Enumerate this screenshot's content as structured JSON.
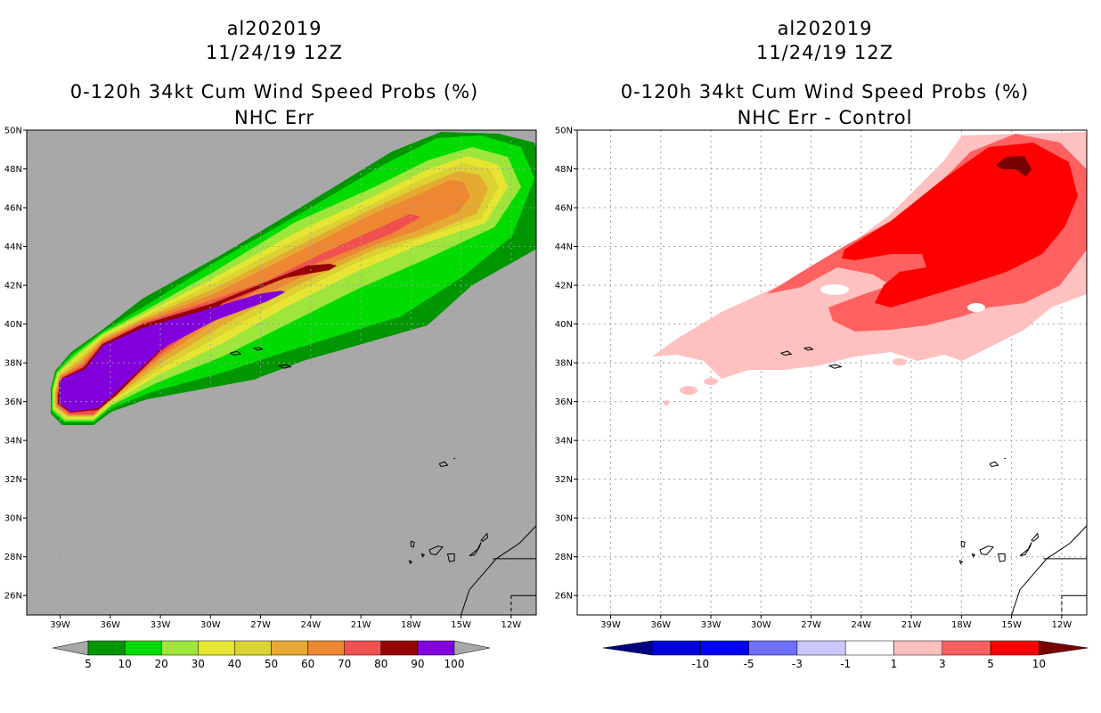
{
  "left_panel": {
    "storm_id": "al202019",
    "datetime": "11/24/19 12Z",
    "product": "0-120h 34kt Cum Wind Speed Probs (%)",
    "subtitle": "NHC Err",
    "background_color": "#a8a8a8",
    "colorbar_labels": [
      "5",
      "10",
      "20",
      "30",
      "40",
      "50",
      "60",
      "70",
      "80",
      "90",
      "100"
    ],
    "colorbar_colors": [
      "#009600",
      "#00dc00",
      "#9ee53c",
      "#e6e632",
      "#dcd232",
      "#e6aa32",
      "#ee8732",
      "#f05050",
      "#960000",
      "#8200dc"
    ]
  },
  "right_panel": {
    "storm_id": "al202019",
    "datetime": "11/24/19 12Z",
    "product": "0-120h 34kt Cum Wind Speed Probs (%)",
    "subtitle": "NHC Err - Control",
    "background_color": "#ffffff",
    "colorbar_labels": [
      "-10",
      "-5",
      "-3",
      "-1",
      "1",
      "3",
      "5",
      "10"
    ],
    "colorbar_colors": [
      "#0000dc",
      "#0000ff",
      "#6e6eff",
      "#c8c8ff",
      "#ffffff",
      "#ffc0c0",
      "#ff6060",
      "#ff0000"
    ]
  },
  "lat_labels": [
    "50N",
    "48N",
    "46N",
    "44N",
    "42N",
    "40N",
    "38N",
    "36N",
    "34N",
    "32N",
    "30N",
    "28N",
    "26N"
  ],
  "lon_labels": [
    "39W",
    "36W",
    "33W",
    "30W",
    "27W",
    "24W",
    "21W",
    "18W",
    "15W",
    "12W"
  ],
  "extent": {
    "lon_min": -41,
    "lon_max": -10.5,
    "lat_min": 25,
    "lat_max": 50
  },
  "colors": {
    "end_triangle_left": "#a8a8a8",
    "end_triangle_right_low": "#000080",
    "end_triangle_right_high": "#780000",
    "coast": "#000000",
    "grid": "#a0a0a0"
  }
}
